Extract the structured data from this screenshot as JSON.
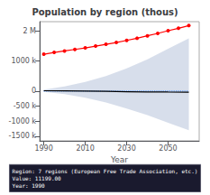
{
  "chart_data": {
    "type": "line",
    "title": "Population by region (thous)",
    "xlabel": "Year",
    "xlim": [
      1988,
      2065
    ],
    "ylim": [
      -1650000,
      2300000
    ],
    "xticks": [
      1990,
      2010,
      2030,
      2050
    ],
    "yticks": [
      {
        "value": -1500000,
        "label": "-1500 k"
      },
      {
        "value": -1000000,
        "label": "-1000 k"
      },
      {
        "value": -500000,
        "label": "-500 k"
      },
      0,
      {
        "value": 1000000,
        "label": "1000 k"
      },
      {
        "value": 2000000,
        "label": "2 M"
      }
    ],
    "grid": false,
    "series": [
      {
        "type": "band",
        "color": "#d0d8e8",
        "x": [
          1990,
          2000,
          2010,
          2020,
          2030,
          2040,
          2050,
          2060
        ],
        "lower": [
          -30000,
          -100000,
          -220000,
          -380000,
          -580000,
          -800000,
          -1050000,
          -1300000
        ],
        "upper": [
          50000,
          150000,
          300000,
          500000,
          750000,
          1050000,
          1400000,
          1750000
        ]
      },
      {
        "type": "line",
        "color": "#5599ff",
        "line_style": "dotted",
        "x": [
          1990,
          2000,
          2010,
          2020,
          2030,
          2040,
          2050,
          2060
        ],
        "values": [
          0,
          0,
          0,
          0,
          0,
          0,
          0,
          0
        ]
      },
      {
        "type": "line",
        "color": "#000000",
        "line_style": "solid",
        "x": [
          1990,
          2000,
          2010,
          2020,
          2030,
          2040,
          2050,
          2060
        ],
        "values": [
          11199,
          5000,
          -2000,
          -10000,
          -20000,
          -28000,
          -33000,
          -36000
        ]
      },
      {
        "type": "line",
        "color": "#ff0000",
        "line_style": "solid",
        "marker": "circle",
        "x": [
          1990,
          1995,
          2000,
          2005,
          2010,
          2015,
          2020,
          2025,
          2030,
          2035,
          2040,
          2045,
          2050,
          2055,
          2060
        ],
        "values": [
          1220000,
          1280000,
          1330000,
          1380000,
          1430000,
          1490000,
          1550000,
          1610000,
          1680000,
          1750000,
          1830000,
          1910000,
          2000000,
          2080000,
          2170000
        ]
      }
    ],
    "annotations": [
      {
        "text": "Region: 7 regions (European Free Trade Association, etc.)\nValue: 11199.00\nYear: 1990"
      }
    ]
  }
}
